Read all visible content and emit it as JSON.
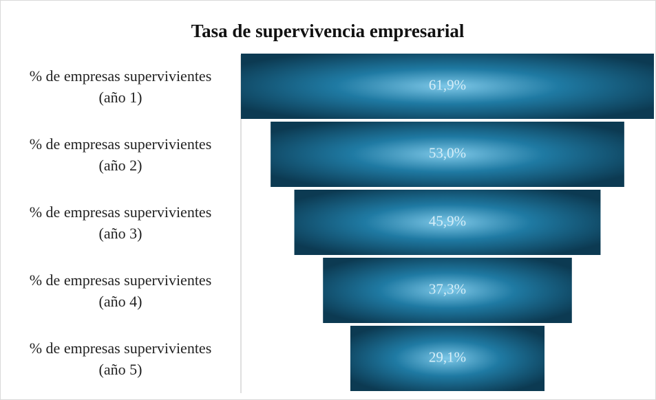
{
  "chart_data": {
    "type": "funnel",
    "title": "Tasa de supervivencia empresarial",
    "categories": [
      "% de empresas supervivientes (año 1)",
      "% de empresas supervivientes (año 2)",
      "% de empresas supervivientes (año 3)",
      "% de empresas supervivientes (año 4)",
      "% de empresas supervivientes (año 5)"
    ],
    "values": [
      61.9,
      53.0,
      45.9,
      37.3,
      29.1
    ],
    "value_labels": [
      "61,9%",
      "53,0%",
      "45,9%",
      "37,3%",
      "29,1%"
    ],
    "color": "#1a6b8f"
  }
}
